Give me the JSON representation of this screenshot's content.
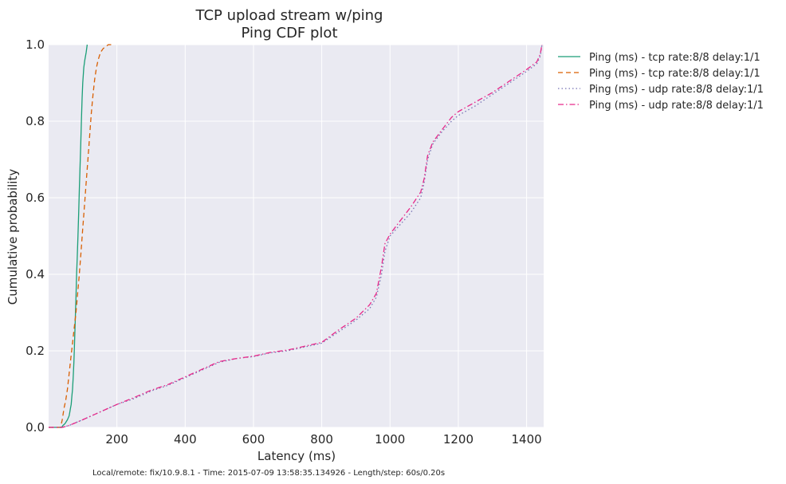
{
  "chart_data": {
    "type": "line",
    "title_lines": [
      "TCP upload stream w/ping",
      "Ping CDF plot"
    ],
    "xlabel": "Latency (ms)",
    "ylabel": "Cumulative probability",
    "xlim": [
      0,
      1450
    ],
    "ylim": [
      0.0,
      1.0
    ],
    "x_ticks": [
      200,
      400,
      600,
      800,
      1000,
      1200,
      1400
    ],
    "y_ticks": [
      0.0,
      0.2,
      0.4,
      0.6,
      0.8,
      1.0
    ],
    "y_tick_labels": [
      "0.0",
      "0.2",
      "0.4",
      "0.6",
      "0.8",
      "1.0"
    ],
    "grid": true,
    "legend_position": "outside-right",
    "footer": "Local/remote: fix/10.9.8.1 - Time: 2015-07-09 13:58:35.134926 - Length/step: 60s/0.20s",
    "series": [
      {
        "name": "Ping (ms) - tcp rate:8/8 delay:1/1",
        "color": "#1b9e77",
        "linestyle": "solid",
        "points": [
          [
            0,
            0
          ],
          [
            38,
            0
          ],
          [
            42,
            0.005
          ],
          [
            48,
            0.01
          ],
          [
            55,
            0.02
          ],
          [
            60,
            0.03
          ],
          [
            62,
            0.04
          ],
          [
            64,
            0.05
          ],
          [
            66,
            0.06
          ],
          [
            68,
            0.08
          ],
          [
            70,
            0.1
          ],
          [
            72,
            0.13
          ],
          [
            74,
            0.17
          ],
          [
            76,
            0.22
          ],
          [
            78,
            0.28
          ],
          [
            80,
            0.34
          ],
          [
            82,
            0.4
          ],
          [
            84,
            0.45
          ],
          [
            86,
            0.5
          ],
          [
            88,
            0.56
          ],
          [
            90,
            0.62
          ],
          [
            92,
            0.68
          ],
          [
            94,
            0.74
          ],
          [
            96,
            0.8
          ],
          [
            98,
            0.86
          ],
          [
            100,
            0.9
          ],
          [
            103,
            0.94
          ],
          [
            106,
            0.96
          ],
          [
            110,
            0.98
          ],
          [
            113,
            1.0
          ]
        ]
      },
      {
        "name": "Ping (ms) - tcp rate:8/8 delay:1/1",
        "color": "#d95f02",
        "linestyle": "dashed",
        "points": [
          [
            0,
            0
          ],
          [
            35,
            0
          ],
          [
            40,
            0.02
          ],
          [
            45,
            0.05
          ],
          [
            50,
            0.07
          ],
          [
            55,
            0.1
          ],
          [
            60,
            0.14
          ],
          [
            65,
            0.18
          ],
          [
            70,
            0.22
          ],
          [
            75,
            0.26
          ],
          [
            80,
            0.3
          ],
          [
            85,
            0.35
          ],
          [
            90,
            0.4
          ],
          [
            95,
            0.46
          ],
          [
            100,
            0.52
          ],
          [
            105,
            0.58
          ],
          [
            110,
            0.64
          ],
          [
            115,
            0.7
          ],
          [
            120,
            0.76
          ],
          [
            125,
            0.82
          ],
          [
            130,
            0.87
          ],
          [
            135,
            0.91
          ],
          [
            140,
            0.94
          ],
          [
            145,
            0.96
          ],
          [
            152,
            0.98
          ],
          [
            160,
            0.99
          ],
          [
            175,
            1.0
          ],
          [
            190,
            1.0
          ]
        ]
      },
      {
        "name": "Ping (ms) - udp rate:8/8 delay:1/1",
        "color": "#7570b3",
        "linestyle": "dotted",
        "points": [
          [
            0,
            0
          ],
          [
            40,
            0
          ],
          [
            60,
            0.005
          ],
          [
            100,
            0.02
          ],
          [
            150,
            0.04
          ],
          [
            200,
            0.06
          ],
          [
            250,
            0.075
          ],
          [
            300,
            0.095
          ],
          [
            350,
            0.11
          ],
          [
            400,
            0.13
          ],
          [
            450,
            0.15
          ],
          [
            500,
            0.17
          ],
          [
            550,
            0.18
          ],
          [
            600,
            0.185
          ],
          [
            650,
            0.195
          ],
          [
            700,
            0.2
          ],
          [
            750,
            0.21
          ],
          [
            800,
            0.22
          ],
          [
            850,
            0.25
          ],
          [
            900,
            0.28
          ],
          [
            940,
            0.31
          ],
          [
            960,
            0.34
          ],
          [
            975,
            0.4
          ],
          [
            985,
            0.46
          ],
          [
            1000,
            0.5
          ],
          [
            1030,
            0.53
          ],
          [
            1060,
            0.56
          ],
          [
            1090,
            0.6
          ],
          [
            1100,
            0.64
          ],
          [
            1110,
            0.7
          ],
          [
            1125,
            0.74
          ],
          [
            1150,
            0.77
          ],
          [
            1180,
            0.8
          ],
          [
            1200,
            0.815
          ],
          [
            1250,
            0.84
          ],
          [
            1300,
            0.87
          ],
          [
            1350,
            0.9
          ],
          [
            1400,
            0.93
          ],
          [
            1430,
            0.95
          ],
          [
            1440,
            0.97
          ],
          [
            1445,
            1.0
          ]
        ]
      },
      {
        "name": "Ping (ms) - udp rate:8/8 delay:1/1",
        "color": "#e7298a",
        "linestyle": "dashdot",
        "points": [
          [
            0,
            0
          ],
          [
            40,
            0
          ],
          [
            60,
            0.005
          ],
          [
            100,
            0.02
          ],
          [
            150,
            0.04
          ],
          [
            200,
            0.06
          ],
          [
            250,
            0.078
          ],
          [
            300,
            0.097
          ],
          [
            350,
            0.112
          ],
          [
            400,
            0.132
          ],
          [
            450,
            0.152
          ],
          [
            500,
            0.172
          ],
          [
            550,
            0.18
          ],
          [
            600,
            0.186
          ],
          [
            650,
            0.196
          ],
          [
            700,
            0.202
          ],
          [
            750,
            0.212
          ],
          [
            800,
            0.222
          ],
          [
            850,
            0.255
          ],
          [
            900,
            0.285
          ],
          [
            940,
            0.32
          ],
          [
            960,
            0.35
          ],
          [
            975,
            0.42
          ],
          [
            985,
            0.48
          ],
          [
            1000,
            0.505
          ],
          [
            1030,
            0.54
          ],
          [
            1060,
            0.575
          ],
          [
            1090,
            0.615
          ],
          [
            1100,
            0.65
          ],
          [
            1110,
            0.71
          ],
          [
            1125,
            0.745
          ],
          [
            1150,
            0.775
          ],
          [
            1180,
            0.81
          ],
          [
            1200,
            0.825
          ],
          [
            1250,
            0.85
          ],
          [
            1300,
            0.875
          ],
          [
            1350,
            0.905
          ],
          [
            1400,
            0.935
          ],
          [
            1430,
            0.955
          ],
          [
            1440,
            0.975
          ],
          [
            1445,
            1.0
          ]
        ]
      }
    ]
  }
}
